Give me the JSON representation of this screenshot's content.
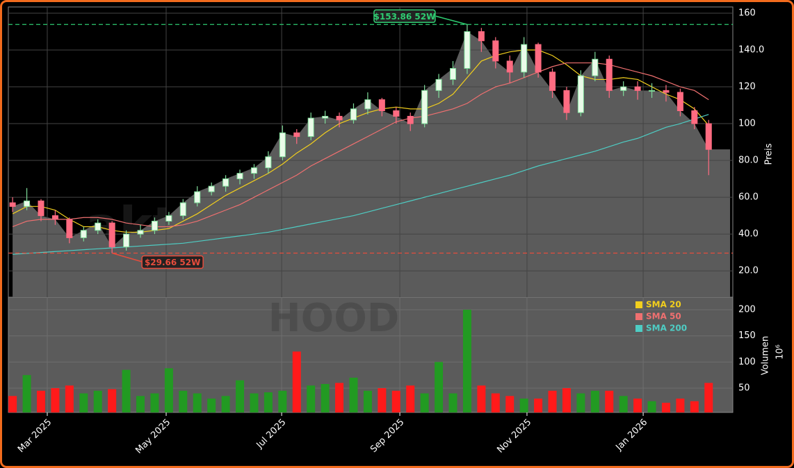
{
  "chart_data": [
    {
      "type": "candlestick",
      "watermark": "aktiensignale.trade",
      "symbol": "HOOD",
      "ylabel": "Preis",
      "open": [
        57,
        55,
        58,
        50,
        48,
        38,
        42,
        46,
        33,
        40,
        42,
        47,
        50,
        57,
        63,
        66,
        70,
        73,
        76,
        82,
        95,
        93,
        103,
        104,
        102,
        108,
        113,
        107,
        104,
        100,
        118,
        124,
        130,
        150,
        145,
        134,
        128,
        143,
        128,
        118,
        106,
        126,
        135,
        118,
        120,
        118,
        118,
        117,
        107,
        100
      ],
      "high": [
        60,
        65,
        59,
        53,
        49,
        44,
        48,
        47,
        42,
        45,
        49,
        52,
        59,
        66,
        68,
        72,
        75,
        78,
        85,
        99,
        97,
        106,
        107,
        106,
        111,
        117,
        114,
        109,
        106,
        121,
        127,
        134,
        153.86,
        152,
        147,
        137,
        147,
        144,
        130,
        120,
        129,
        139,
        137,
        123,
        123,
        122,
        121,
        119,
        109,
        102
      ],
      "low": [
        52,
        53,
        47,
        45,
        35,
        36,
        40,
        29.66,
        31,
        38,
        40,
        45,
        48,
        55,
        61,
        63,
        67,
        70,
        73,
        80,
        89,
        91,
        100,
        98,
        100,
        105,
        104,
        100,
        96,
        98,
        114,
        121,
        127,
        139,
        130,
        122,
        125,
        125,
        114,
        102,
        104,
        123,
        114,
        115,
        113,
        114,
        112,
        104,
        97,
        72
      ],
      "close": [
        55,
        58,
        50,
        48,
        38,
        42,
        46,
        33,
        40,
        42,
        47,
        50,
        57,
        63,
        66,
        70,
        73,
        76,
        82,
        95,
        93,
        103,
        104,
        102,
        108,
        113,
        107,
        104,
        100,
        118,
        124,
        130,
        150,
        145,
        134,
        128,
        143,
        128,
        118,
        106,
        126,
        135,
        118,
        120,
        118,
        118,
        117,
        107,
        100,
        86
      ],
      "up_color": "#7fdc9a",
      "down_color": "#ff6b81",
      "area_color": "#5b5b5b",
      "series": [
        {
          "name": "SMA 20",
          "color": "#f2cf1d",
          "values": [
            51,
            55,
            55,
            53,
            48,
            44,
            44,
            42,
            41,
            41,
            42,
            43,
            47,
            51,
            56,
            61,
            65,
            69,
            73,
            78,
            84,
            89,
            95,
            100,
            103,
            106,
            108,
            109,
            108,
            108,
            111,
            116,
            125,
            134,
            137,
            139,
            140,
            140,
            137,
            132,
            126,
            124,
            124,
            125,
            124,
            120,
            116,
            113,
            108,
            99
          ]
        },
        {
          "name": "SMA 50",
          "color": "#f07070",
          "values": [
            44,
            47,
            48,
            48,
            48,
            49,
            49,
            48,
            46,
            45,
            44,
            44,
            45,
            47,
            50,
            53,
            56,
            60,
            64,
            68,
            72,
            77,
            81,
            85,
            89,
            93,
            97,
            101,
            103,
            104,
            106,
            108,
            111,
            116,
            120,
            122,
            125,
            128,
            131,
            133,
            133,
            133,
            132,
            130,
            128,
            126,
            123,
            120,
            118,
            113
          ]
        },
        {
          "name": "SMA 200",
          "color": "#4ecdc4",
          "values": [
            29,
            29.5,
            30,
            30.5,
            31,
            31.5,
            32,
            32.5,
            33,
            33.5,
            34,
            34.5,
            35,
            36,
            37,
            38,
            39,
            40,
            41,
            42.5,
            44,
            45.5,
            47,
            48.5,
            50,
            52,
            54,
            56,
            58,
            60,
            62,
            64,
            66,
            68,
            70,
            72,
            74.5,
            77,
            79,
            81,
            83,
            85,
            87.5,
            90,
            92,
            95,
            98,
            100,
            102.5,
            105
          ]
        }
      ],
      "annotations": [
        {
          "text": "$153.86 52W",
          "value": 153.86,
          "color": "#2ecc71"
        },
        {
          "text": "$29.66 52W",
          "value": 29.66,
          "color": "#e74c3c"
        }
      ],
      "legend": "upper right",
      "grid": true,
      "xlim": [
        -0.3,
        50.7
      ],
      "ylim": [
        5.7,
        163.4
      ],
      "yticks": [
        {
          "value": 20,
          "label": "20.0"
        },
        {
          "value": 40,
          "label": "40.0"
        },
        {
          "value": 60,
          "label": "60.0"
        },
        {
          "value": 80,
          "label": "80.0"
        },
        100,
        120,
        {
          "value": 140,
          "label": "140.0"
        },
        160
      ]
    },
    {
      "type": "bar",
      "ylabel": "Volumen",
      "scale_label": "10⁶",
      "values": [
        35,
        75,
        45,
        50,
        55,
        40,
        45,
        48,
        85,
        35,
        40,
        88,
        45,
        40,
        30,
        35,
        65,
        40,
        42,
        45,
        120,
        55,
        58,
        60,
        70,
        45,
        50,
        45,
        55,
        40,
        100,
        40,
        200,
        55,
        40,
        35,
        30,
        30,
        45,
        50,
        40,
        45,
        45,
        35,
        30,
        25,
        22,
        30,
        25,
        60
      ],
      "up_color": "#229a22",
      "down_color": "#ff1a1a",
      "background": "#5b5b5b",
      "grid": true,
      "xlim": [
        -0.3,
        50.7
      ],
      "ylim": [
        3.5,
        224
      ],
      "yticks": [
        50,
        100,
        150,
        200
      ],
      "xticks": [
        {
          "value": 2.44,
          "label": "Mar 2025"
        },
        {
          "value": 10.81,
          "label": "May 2025"
        },
        {
          "value": 18.94,
          "label": "Jul 2025"
        },
        {
          "value": 27.26,
          "label": "Sep 2025"
        },
        {
          "value": 36.21,
          "label": "Nov 2025"
        },
        {
          "value": 44.39,
          "label": "Jan 2026"
        }
      ]
    }
  ]
}
